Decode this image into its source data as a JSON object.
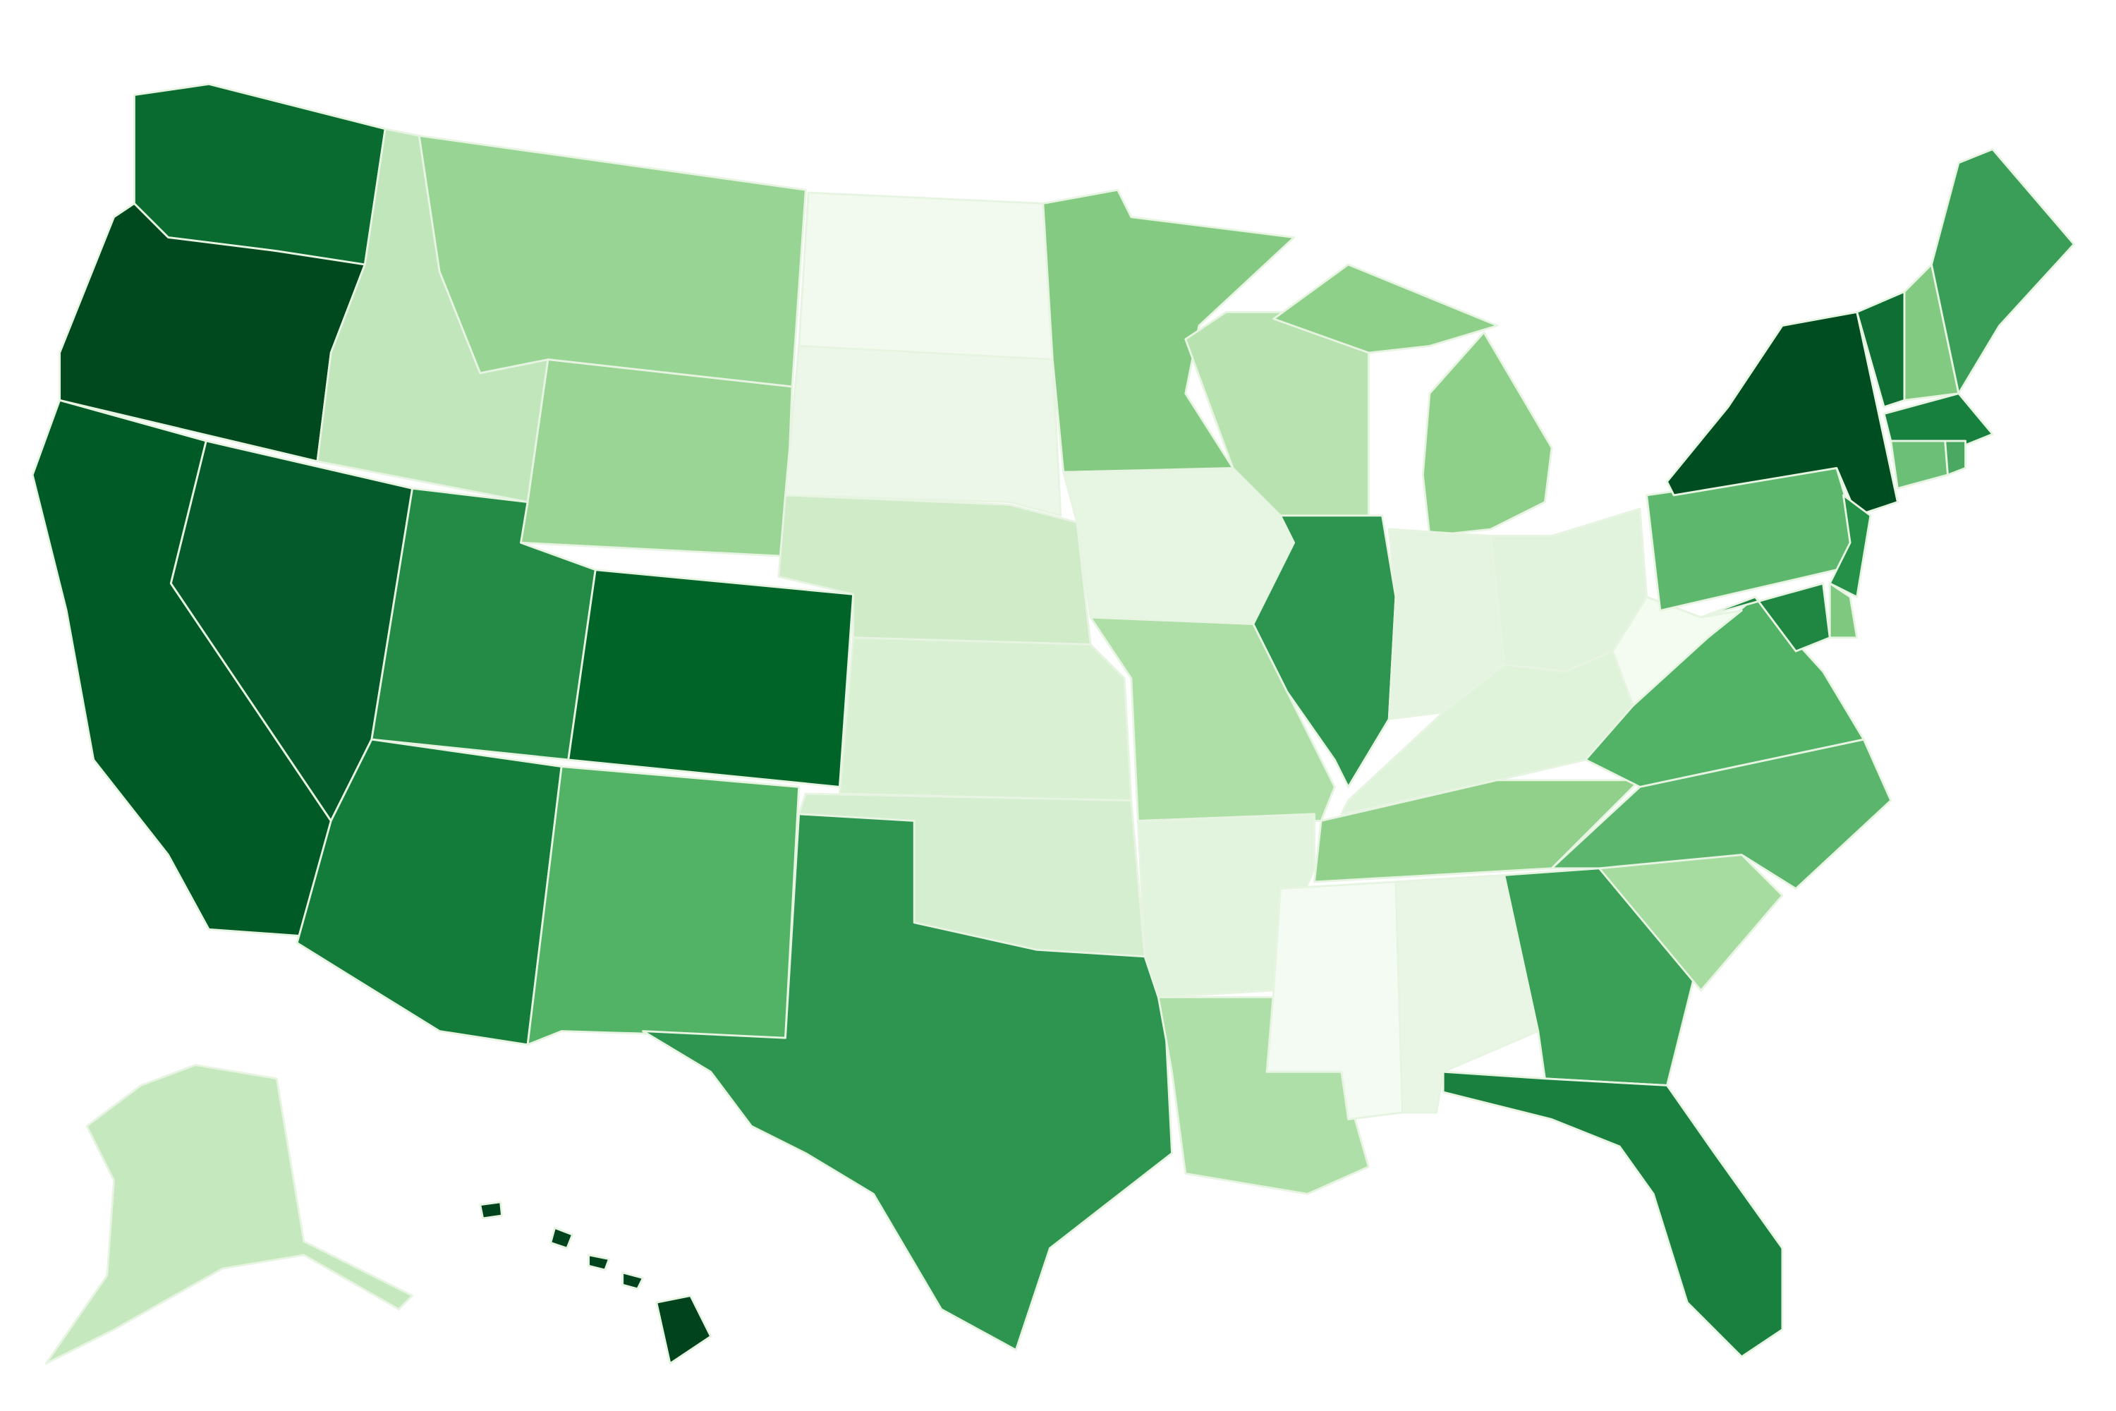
{
  "map": {
    "type": "choropleth",
    "border_color": "#e6f4e1",
    "regions": [
      {
        "color": "#0a6b30"
      },
      {
        "color": "#00481e"
      },
      {
        "color": "#005a25"
      },
      {
        "color": "#045a2a"
      },
      {
        "color": "#c2e6bb"
      },
      {
        "color": "#98d494"
      },
      {
        "color": "#9bd595"
      },
      {
        "color": "#238b45"
      },
      {
        "color": "#006428"
      },
      {
        "color": "#147c3b"
      },
      {
        "color": "#52b266"
      },
      {
        "color": "#f2f9ef"
      },
      {
        "color": "#edf7e9"
      },
      {
        "color": "#cfebc8"
      },
      {
        "color": "#daf0d3"
      },
      {
        "color": "#d6eed0"
      },
      {
        "color": "#2e9550"
      },
      {
        "color": "#84ca83"
      },
      {
        "color": "#e7f5e3"
      },
      {
        "color": "#addfa6"
      },
      {
        "color": "#e3f4de"
      },
      {
        "color": "#afdfa8"
      },
      {
        "color": "#b8e3b0"
      },
      {
        "color": "#2e9550"
      },
      {
        "color": "#8ecf89"
      },
      {
        "color": "#e5f4e0"
      },
      {
        "color": "#e2f3dd"
      },
      {
        "color": "#dff2da"
      },
      {
        "color": "#90d08b"
      },
      {
        "color": "#f4fbf2"
      },
      {
        "color": "#eaf6e5"
      },
      {
        "color": "#3aa057"
      },
      {
        "color": "#1a803f"
      },
      {
        "color": "#a6dc9f"
      },
      {
        "color": "#5bb56d"
      },
      {
        "color": "#52b266"
      },
      {
        "color": "#f4fbf1"
      },
      {
        "color": "#5db86d"
      },
      {
        "color": "#004d21"
      },
      {
        "color": "#259048"
      },
      {
        "color": "#208743"
      },
      {
        "color": "#7fc880"
      },
      {
        "color": "#0e6e33"
      },
      {
        "color": "#82c982"
      },
      {
        "color": "#3b9e58"
      },
      {
        "color": "#17803e"
      },
      {
        "color": "#6cbf76"
      },
      {
        "color": "#4aa862"
      },
      {
        "color": "#c6e8be"
      },
      {
        "color": "#00431c"
      }
    ]
  }
}
